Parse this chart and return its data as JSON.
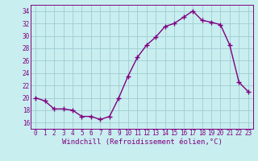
{
  "x": [
    0,
    1,
    2,
    3,
    4,
    5,
    6,
    7,
    8,
    9,
    10,
    11,
    12,
    13,
    14,
    15,
    16,
    17,
    18,
    19,
    20,
    21,
    22,
    23
  ],
  "y": [
    20,
    19.5,
    18.2,
    18.2,
    18.0,
    17.0,
    17.0,
    16.5,
    17.0,
    20.0,
    23.5,
    26.5,
    28.5,
    29.8,
    31.5,
    32.0,
    33.0,
    34.0,
    32.5,
    32.2,
    31.8,
    28.5,
    22.5,
    21.0
  ],
  "line_color": "#800080",
  "marker": "+",
  "marker_size": 4,
  "linewidth": 1.0,
  "bg_color": "#c8eef0",
  "grid_color": "#a0ccd0",
  "xlabel": "Windchill (Refroidissement éolien,°C)",
  "xlabel_color": "#800080",
  "xlabel_fontsize": 6.5,
  "tick_color": "#800080",
  "tick_fontsize": 5.5,
  "ylim": [
    15,
    35
  ],
  "xlim": [
    -0.5,
    23.5
  ],
  "yticks": [
    16,
    18,
    20,
    22,
    24,
    26,
    28,
    30,
    32,
    34
  ],
  "xticks": [
    0,
    1,
    2,
    3,
    4,
    5,
    6,
    7,
    8,
    9,
    10,
    11,
    12,
    13,
    14,
    15,
    16,
    17,
    18,
    19,
    20,
    21,
    22,
    23
  ]
}
